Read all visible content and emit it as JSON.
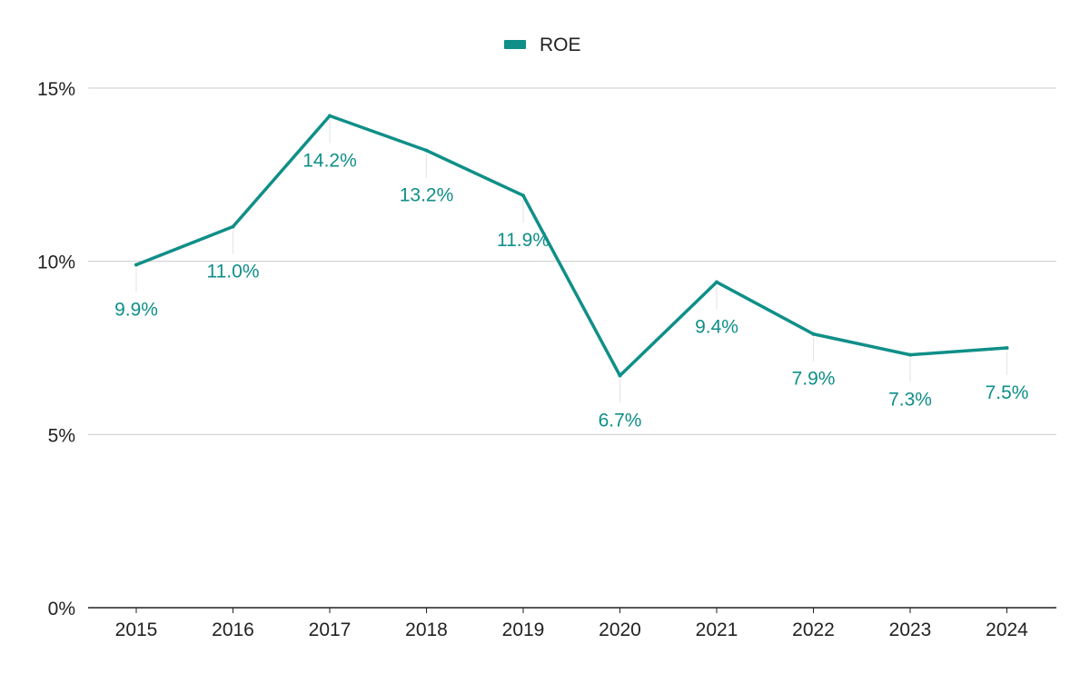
{
  "chart_data": {
    "type": "line",
    "title": "",
    "xlabel": "",
    "ylabel": "",
    "categories": [
      "2015",
      "2016",
      "2017",
      "2018",
      "2019",
      "2020",
      "2021",
      "2022",
      "2023",
      "2024"
    ],
    "series": [
      {
        "name": "ROE",
        "color": "#0f8f88",
        "values": [
          9.9,
          11.0,
          14.2,
          13.2,
          11.9,
          6.7,
          9.4,
          7.9,
          7.3,
          7.5
        ],
        "data_labels": [
          "9.9%",
          "11.0%",
          "14.2%",
          "13.2%",
          "11.9%",
          "6.7%",
          "9.4%",
          "7.9%",
          "7.3%",
          "7.5%"
        ]
      }
    ],
    "ylim": [
      0,
      15
    ],
    "y_ticks": [
      0,
      5,
      10,
      15
    ],
    "y_tick_labels": [
      "0%",
      "5%",
      "10%",
      "15%"
    ],
    "grid": true,
    "legend_position": "top-center",
    "gridline_color": "#cccccc",
    "axis_color": "#222222"
  }
}
